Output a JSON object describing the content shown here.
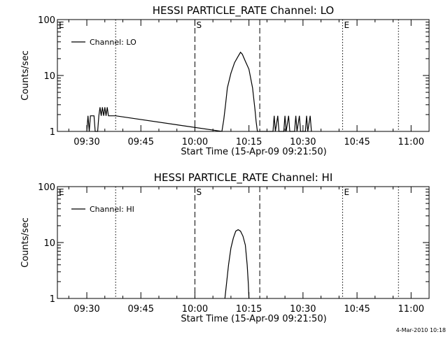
{
  "chart_data": [
    {
      "type": "line",
      "title": "HESSI PARTICLE_RATE Channel: LO",
      "xlabel": "Start Time (15-Apr-09 09:21:50)",
      "ylabel": "Counts/sec",
      "xlim": [
        "09:21:50",
        "11:05:00"
      ],
      "ylim": [
        1,
        100
      ],
      "yscale": "log",
      "xticks": [
        "09:30",
        "09:45",
        "10:00",
        "10:15",
        "10:30",
        "10:45",
        "11:00"
      ],
      "yticks": [
        "1",
        "10",
        "100"
      ],
      "legend": "top-left",
      "grid": false,
      "series": [
        {
          "name": "Channel: LO",
          "color": "#000000",
          "points": [
            [
              "09:30:00",
              1
            ],
            [
              "09:30:20",
              1.9
            ],
            [
              "09:30:40",
              1
            ],
            [
              "09:31:00",
              1.9
            ],
            [
              "09:32:00",
              1.9
            ],
            [
              "09:32:20",
              1
            ],
            [
              "09:33:00",
              1
            ],
            [
              "09:33:20",
              1.9
            ],
            [
              "09:33:40",
              2.7
            ],
            [
              "09:34:00",
              1.9
            ],
            [
              "09:34:20",
              2.7
            ],
            [
              "09:34:40",
              1.9
            ],
            [
              "09:35:00",
              2.7
            ],
            [
              "09:35:20",
              1.9
            ],
            [
              "09:35:40",
              2.7
            ],
            [
              "09:36:00",
              1.9
            ],
            [
              "09:38:00",
              1.9
            ],
            [
              "10:07:30",
              1
            ],
            [
              "10:08:00",
              1.6
            ],
            [
              "10:08:30",
              3
            ],
            [
              "10:09:00",
              6
            ],
            [
              "10:10:00",
              11
            ],
            [
              "10:11:00",
              17
            ],
            [
              "10:12:00",
              22
            ],
            [
              "10:12:40",
              26
            ],
            [
              "10:13:10",
              24
            ],
            [
              "10:14:00",
              18
            ],
            [
              "10:15:00",
              13
            ],
            [
              "10:16:00",
              6
            ],
            [
              "10:16:40",
              2.5
            ],
            [
              "10:17:00",
              1.5
            ],
            [
              "10:17:20",
              1
            ],
            [
              "10:21:40",
              1
            ],
            [
              "10:22:00",
              1.9
            ],
            [
              "10:22:20",
              1
            ],
            [
              "10:23:00",
              1.9
            ],
            [
              "10:23:20",
              1
            ],
            [
              "10:24:40",
              1
            ],
            [
              "10:25:00",
              1.9
            ],
            [
              "10:25:20",
              1
            ],
            [
              "10:26:00",
              1.9
            ],
            [
              "10:26:20",
              1
            ],
            [
              "10:27:40",
              1
            ],
            [
              "10:28:00",
              1.9
            ],
            [
              "10:28:20",
              1
            ],
            [
              "10:29:00",
              1.9
            ],
            [
              "10:29:20",
              1
            ],
            [
              "10:30:40",
              1
            ],
            [
              "10:31:00",
              1.9
            ],
            [
              "10:31:20",
              1
            ],
            [
              "10:32:00",
              1.9
            ],
            [
              "10:32:20",
              1
            ]
          ]
        }
      ],
      "markers": [
        {
          "label": "E",
          "time": "09:21:50",
          "style": "dotted"
        },
        {
          "label": "",
          "time": "09:38:00",
          "style": "dotted"
        },
        {
          "label": "S",
          "time": "10:00:00",
          "style": "dashed"
        },
        {
          "label": "",
          "time": "10:18:00",
          "style": "dashed"
        },
        {
          "label": "E",
          "time": "10:41:00",
          "style": "dotted"
        },
        {
          "label": "",
          "time": "10:56:30",
          "style": "dotted"
        }
      ]
    },
    {
      "type": "line",
      "title": "HESSI PARTICLE_RATE Channel: HI",
      "xlabel": "Start Time (15-Apr-09 09:21:50)",
      "ylabel": "Counts/sec",
      "xlim": [
        "09:21:50",
        "11:05:00"
      ],
      "ylim": [
        1,
        100
      ],
      "yscale": "log",
      "xticks": [
        "09:30",
        "09:45",
        "10:00",
        "10:15",
        "10:30",
        "10:45",
        "11:00"
      ],
      "yticks": [
        "1",
        "10",
        "100"
      ],
      "legend": "top-left",
      "grid": false,
      "series": [
        {
          "name": "Channel: HI",
          "color": "#000000",
          "points": [
            [
              "10:08:20",
              1
            ],
            [
              "10:08:50",
              2
            ],
            [
              "10:09:20",
              4
            ],
            [
              "10:10:00",
              8
            ],
            [
              "10:10:40",
              12
            ],
            [
              "10:11:20",
              16
            ],
            [
              "10:12:00",
              17
            ],
            [
              "10:12:40",
              16
            ],
            [
              "10:13:20",
              13
            ],
            [
              "10:14:00",
              9
            ],
            [
              "10:14:30",
              4
            ],
            [
              "10:14:50",
              1.8
            ],
            [
              "10:15:00",
              1
            ]
          ]
        }
      ],
      "markers": [
        {
          "label": "E",
          "time": "09:21:50",
          "style": "dotted"
        },
        {
          "label": "",
          "time": "09:38:00",
          "style": "dotted"
        },
        {
          "label": "S",
          "time": "10:00:00",
          "style": "dashed"
        },
        {
          "label": "",
          "time": "10:18:00",
          "style": "dashed"
        },
        {
          "label": "E",
          "time": "10:41:00",
          "style": "dotted"
        },
        {
          "label": "",
          "time": "10:56:30",
          "style": "dotted"
        }
      ]
    }
  ],
  "footer": {
    "timestamp": "4-Mar-2010 10:18"
  }
}
